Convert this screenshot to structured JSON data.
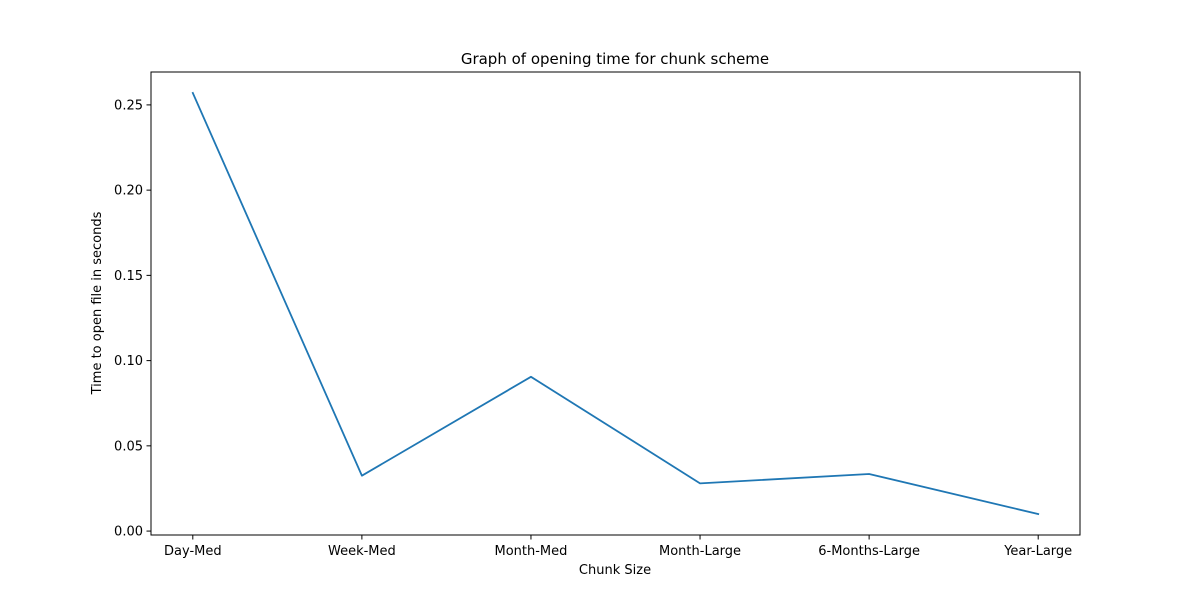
{
  "chart_data": {
    "type": "line",
    "title": "Graph of opening time for chunk scheme",
    "xlabel": "Chunk Size",
    "ylabel": "Time to open file in seconds",
    "categories": [
      "Day-Med",
      "Week-Med",
      "Month-Med",
      "Month-Large",
      "6-Months-Large",
      "Year-Large"
    ],
    "series": [
      {
        "values": [
          0.257,
          0.0325,
          0.0905,
          0.028,
          0.0335,
          0.01
        ]
      }
    ],
    "ylim": [
      -0.0023,
      0.2693
    ],
    "yticks": [
      0.0,
      0.05,
      0.1,
      0.15,
      0.2,
      0.25
    ],
    "ytick_labels": [
      "0.00",
      "0.05",
      "0.10",
      "0.15",
      "0.20",
      "0.25"
    ],
    "grid": false,
    "line_color": "#1f77b4"
  }
}
